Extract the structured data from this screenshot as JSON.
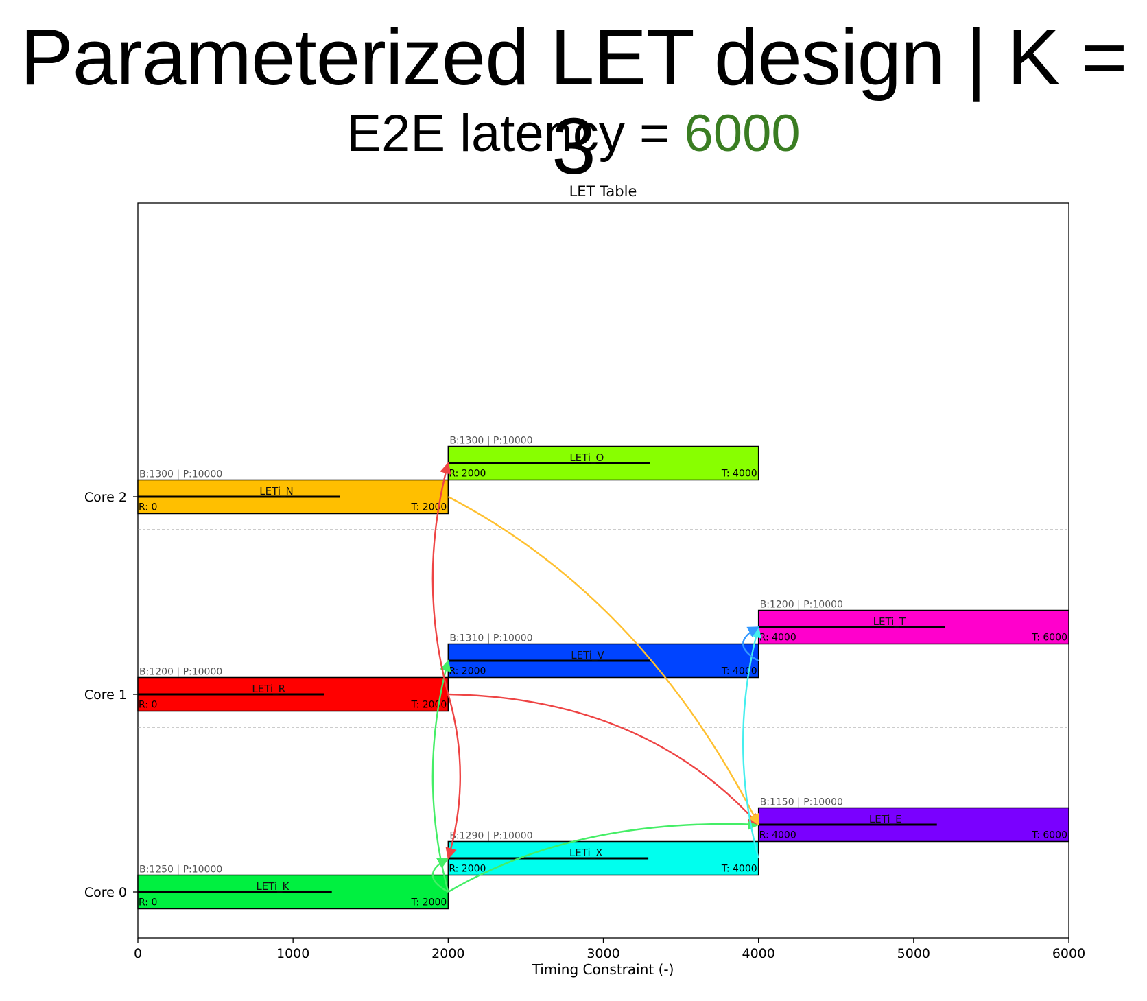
{
  "slide": {
    "title": "Parameterized LET design | K = 3",
    "subtitle_prefix": "E2E latency = ",
    "subtitle_value": "6000",
    "accent_color": "#3a7d22"
  },
  "chart_data": {
    "type": "gantt",
    "title": "LET Table",
    "xlabel": "Timing Constraint (-)",
    "ylabel": "",
    "xlim": [
      0,
      6000
    ],
    "xticks": [
      "0",
      "1000",
      "2000",
      "3000",
      "4000",
      "5000",
      "6000"
    ],
    "cores": [
      "Core 0",
      "Core 1",
      "Core 2"
    ],
    "grid": false,
    "tasks": [
      {
        "name": "LETi_K",
        "core": 0,
        "level": 0,
        "release": 0,
        "terminate": 2000,
        "budget": 1250,
        "period": 10000,
        "color": "#00f040",
        "info": "B:1250 | P:10000",
        "r_label": "R: 0",
        "t_label": "T: 2000"
      },
      {
        "name": "LETi_X",
        "core": 0,
        "level": 1,
        "release": 2000,
        "terminate": 4000,
        "budget": 1290,
        "period": 10000,
        "color": "#00ffee",
        "info": "B:1290 | P:10000",
        "r_label": "R: 2000",
        "t_label": "T: 4000"
      },
      {
        "name": "LETi_E",
        "core": 0,
        "level": 2,
        "release": 4000,
        "terminate": 6000,
        "budget": 1150,
        "period": 10000,
        "color": "#7a00ff",
        "info": "B:1150 | P:10000",
        "r_label": "R: 4000",
        "t_label": "T: 6000"
      },
      {
        "name": "LETi_R",
        "core": 1,
        "level": 0,
        "release": 0,
        "terminate": 2000,
        "budget": 1200,
        "period": 10000,
        "color": "#ff0000",
        "info": "B:1200 | P:10000",
        "r_label": "R: 0",
        "t_label": "T: 2000"
      },
      {
        "name": "LETi_V",
        "core": 1,
        "level": 1,
        "release": 2000,
        "terminate": 4000,
        "budget": 1310,
        "period": 10000,
        "color": "#0044ff",
        "info": "B:1310 | P:10000",
        "r_label": "R: 2000",
        "t_label": "T: 4000"
      },
      {
        "name": "LETi_T",
        "core": 1,
        "level": 2,
        "release": 4000,
        "terminate": 6000,
        "budget": 1200,
        "period": 10000,
        "color": "#ff00cc",
        "info": "B:1200 | P:10000",
        "r_label": "R: 4000",
        "t_label": "T: 6000"
      },
      {
        "name": "LETi_N",
        "core": 2,
        "level": 0,
        "release": 0,
        "terminate": 2000,
        "budget": 1300,
        "period": 10000,
        "color": "#ffbf00",
        "info": "B:1300 | P:10000",
        "r_label": "R: 0",
        "t_label": "T: 2000"
      },
      {
        "name": "LETi_O",
        "core": 2,
        "level": 1,
        "release": 2000,
        "terminate": 4000,
        "budget": 1300,
        "period": 10000,
        "color": "#88ff00",
        "info": "B:1300 | P:10000",
        "r_label": "R: 2000",
        "t_label": "T: 4000"
      }
    ],
    "dependencies": [
      {
        "from": "LETi_K",
        "to": "LETi_V",
        "color": "#44ee66"
      },
      {
        "from": "LETi_K",
        "to": "LETi_X",
        "color": "#44ee66"
      },
      {
        "from": "LETi_K",
        "to": "LETi_E",
        "color": "#44ee66"
      },
      {
        "from": "LETi_R",
        "to": "LETi_O",
        "color": "#ee4444"
      },
      {
        "from": "LETi_R",
        "to": "LETi_X",
        "color": "#ee4444"
      },
      {
        "from": "LETi_R",
        "to": "LETi_E",
        "color": "#ee4444"
      },
      {
        "from": "LETi_N",
        "to": "LETi_E",
        "color": "#ffc030"
      },
      {
        "from": "LETi_X",
        "to": "LETi_T",
        "color": "#44eeee"
      },
      {
        "from": "LETi_V",
        "to": "LETi_T",
        "color": "#3399ff"
      }
    ]
  }
}
